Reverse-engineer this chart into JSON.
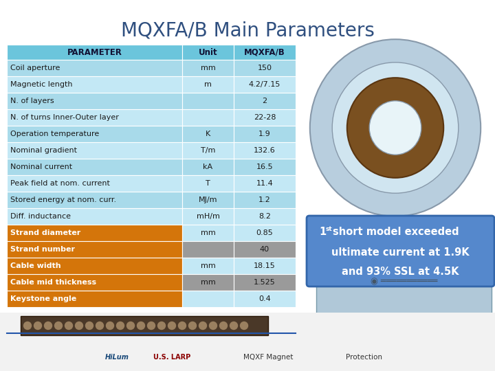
{
  "title": "MQXFA/B Main Parameters",
  "title_fontsize": 20,
  "title_color": "#2F4F7F",
  "background_color": "#FFFFFF",
  "table": {
    "header": [
      "PARAMETER",
      "Unit",
      "MQXFA/B"
    ],
    "header_bg": "#6BC5DC",
    "rows": [
      {
        "param": "Coil aperture",
        "unit": "mm",
        "value": "150",
        "bg": "#A8DAEA",
        "unit_bg": "#A8DAEA",
        "val_bg": "#A8DAEA",
        "bold": false
      },
      {
        "param": "Magnetic length",
        "unit": "m",
        "value": "4.2/7.15",
        "bg": "#C3E8F5",
        "unit_bg": "#C3E8F5",
        "val_bg": "#C3E8F5",
        "bold": false
      },
      {
        "param": "N. of layers",
        "unit": "",
        "value": "2",
        "bg": "#A8DAEA",
        "unit_bg": "#A8DAEA",
        "val_bg": "#A8DAEA",
        "bold": false
      },
      {
        "param": "N. of turns Inner-Outer layer",
        "unit": "",
        "value": "22-28",
        "bg": "#C3E8F5",
        "unit_bg": "#C3E8F5",
        "val_bg": "#C3E8F5",
        "bold": false
      },
      {
        "param": "Operation temperature",
        "unit": "K",
        "value": "1.9",
        "bg": "#A8DAEA",
        "unit_bg": "#A8DAEA",
        "val_bg": "#A8DAEA",
        "bold": false
      },
      {
        "param": "Nominal gradient",
        "unit": "T/m",
        "value": "132.6",
        "bg": "#C3E8F5",
        "unit_bg": "#C3E8F5",
        "val_bg": "#C3E8F5",
        "bold": false
      },
      {
        "param": "Nominal current",
        "unit": "kA",
        "value": "16.5",
        "bg": "#A8DAEA",
        "unit_bg": "#A8DAEA",
        "val_bg": "#A8DAEA",
        "bold": false
      },
      {
        "param": "Peak field at nom. current",
        "unit": "T",
        "value": "11.4",
        "bg": "#C3E8F5",
        "unit_bg": "#C3E8F5",
        "val_bg": "#C3E8F5",
        "bold": false
      },
      {
        "param": "Stored energy at nom. curr.",
        "unit": "MJ/m",
        "value": "1.2",
        "bg": "#A8DAEA",
        "unit_bg": "#A8DAEA",
        "val_bg": "#A8DAEA",
        "bold": false
      },
      {
        "param": "Diff. inductance",
        "unit": "mH/m",
        "value": "8.2",
        "bg": "#C3E8F5",
        "unit_bg": "#C3E8F5",
        "val_bg": "#C3E8F5",
        "bold": false
      },
      {
        "param": "Strand diameter",
        "unit": "mm",
        "value": "0.85",
        "bg": "#D4750A",
        "unit_bg": "#C3E8F5",
        "val_bg": "#C3E8F5",
        "bold": true
      },
      {
        "param": "Strand number",
        "unit": "",
        "value": "40",
        "bg": "#D4750A",
        "unit_bg": "#9A9A9A",
        "val_bg": "#9A9A9A",
        "bold": true
      },
      {
        "param": "Cable width",
        "unit": "mm",
        "value": "18.15",
        "bg": "#D4750A",
        "unit_bg": "#C3E8F5",
        "val_bg": "#C3E8F5",
        "bold": true
      },
      {
        "param": "Cable mid thickness",
        "unit": "mm",
        "value": "1.525",
        "bg": "#D4750A",
        "unit_bg": "#9A9A9A",
        "val_bg": "#9A9A9A",
        "bold": true
      },
      {
        "param": "Keystone angle",
        "unit": "",
        "value": "0.4",
        "bg": "#D4750A",
        "unit_bg": "#C3E8F5",
        "val_bg": "#C3E8F5",
        "bold": true
      }
    ]
  },
  "annotation": {
    "bg_color": "#5588CC",
    "text_color": "#FFFFFF",
    "font_size": 10.5
  },
  "colors": {
    "right_panel_bg": "#B8CEDE",
    "bottom_bar": "#E8E8E8",
    "magnet_outer": "#B0C4DE",
    "magnet_inner": "#8B6914"
  }
}
